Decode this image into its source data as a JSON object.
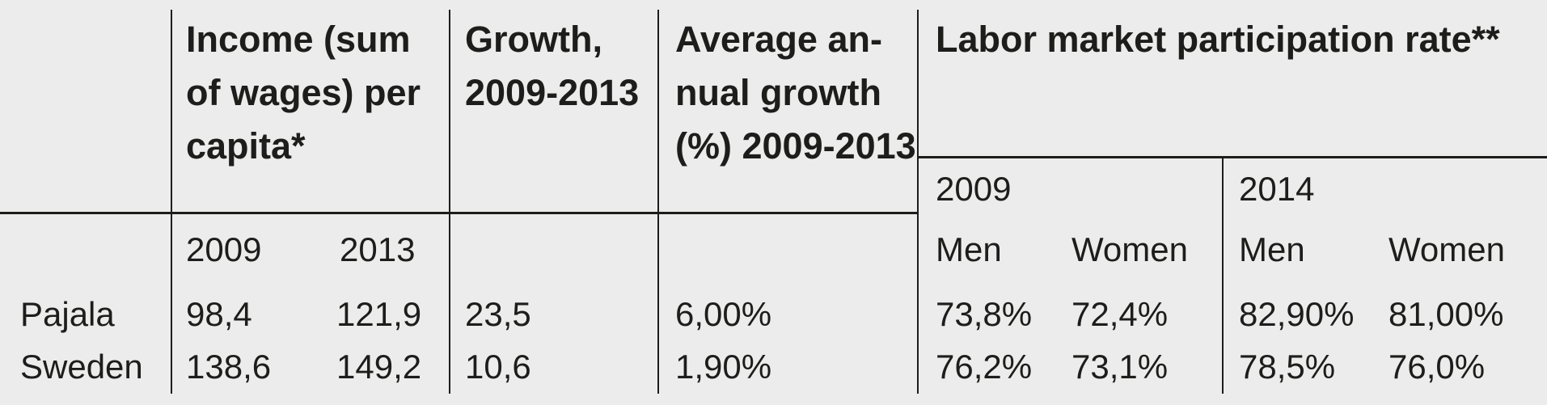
{
  "table": {
    "background_color": "#ececec",
    "text_color": "#1d1d1b",
    "rule_color": "#1d1d1b",
    "headers": {
      "income": "Income (sum\nof wages) per\ncapita*",
      "growth": "Growth,\n2009-2013",
      "avg_growth": "Average an-\nnual growth\n(%) 2009-2013",
      "labor": "Labor market participation rate**"
    },
    "income_years": [
      "2009",
      "2013"
    ],
    "labor_groups": [
      {
        "year": "2009",
        "cols": [
          "Men",
          "Women"
        ]
      },
      {
        "year": "2014",
        "cols": [
          "Men",
          "Women"
        ]
      }
    ],
    "rows": [
      {
        "label": "Pajala",
        "income_2009": "98,4",
        "income_2013": "121,9",
        "growth": "23,5",
        "avg_growth": "6,00%",
        "labor": [
          "73,8%",
          "72,4%",
          "82,90%",
          "81,00%"
        ]
      },
      {
        "label": "Sweden",
        "income_2009": "138,6",
        "income_2013": "149,2",
        "growth": "10,6",
        "avg_growth": "1,90%",
        "labor": [
          "76,2%",
          "73,1%",
          "78,5%",
          "76,0%"
        ]
      }
    ]
  }
}
